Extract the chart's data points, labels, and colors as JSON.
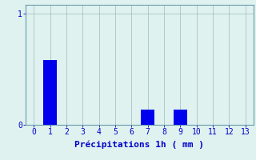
{
  "categories": [
    0,
    1,
    2,
    3,
    4,
    5,
    6,
    7,
    8,
    9,
    10,
    11,
    12,
    13
  ],
  "values": [
    0,
    0.58,
    0,
    0,
    0,
    0,
    0,
    0.14,
    0,
    0.14,
    0,
    0,
    0,
    0
  ],
  "bar_color": "#0000ee",
  "background_color": "#dff2ef",
  "grid_color": "#99bbbb",
  "axis_color": "#6699aa",
  "tick_color": "#0000cc",
  "xlabel": "Précipitations 1h ( mm )",
  "xlabel_color": "#0000cc",
  "xlabel_fontsize": 8,
  "tick_fontsize": 7,
  "ylabel_ticks": [
    0,
    1
  ],
  "ylim": [
    0,
    1.08
  ],
  "xlim": [
    -0.5,
    13.5
  ],
  "bar_width": 0.85
}
